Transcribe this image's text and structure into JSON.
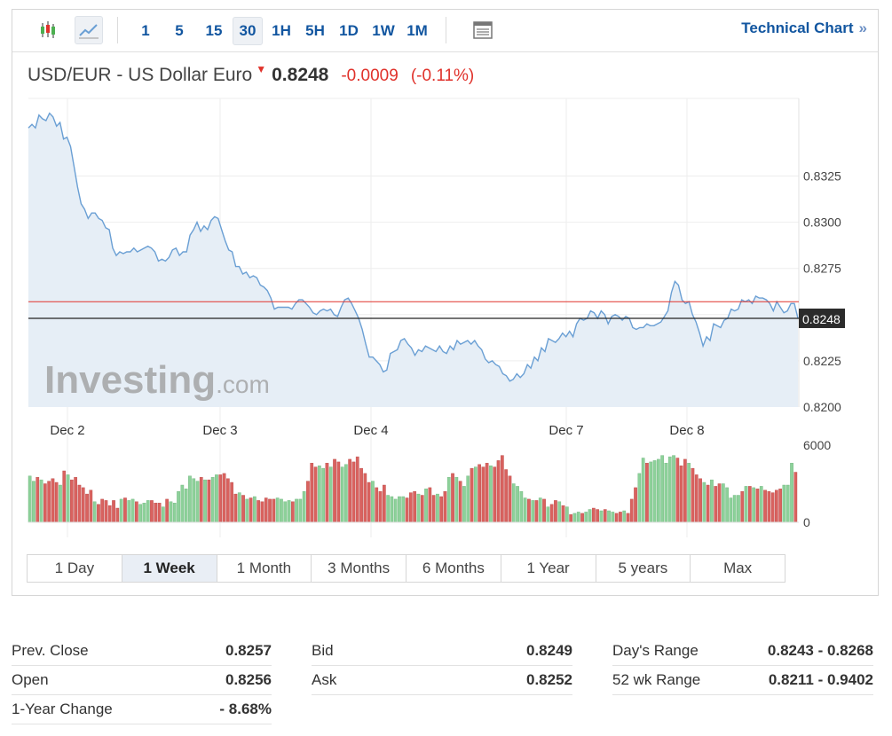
{
  "toolbar": {
    "intervals": [
      "1",
      "5",
      "15",
      "30",
      "1H",
      "5H",
      "1D",
      "1W",
      "1M"
    ],
    "active_interval": "30",
    "technical_chart_label": "Technical Chart",
    "technical_chart_chevron": "»",
    "icons": [
      "candlestick-icon",
      "line-chart-icon",
      "table-icon"
    ]
  },
  "quote": {
    "name": "USD/EUR - US Dollar Euro",
    "direction_arrow": "▼",
    "last": "0.8248",
    "change": "-0.0009",
    "change_pct": "(-0.11%)"
  },
  "chart_data": {
    "type": "line",
    "title": "",
    "ylim": [
      0.82,
      0.8367
    ],
    "yticks": [
      "0.8325",
      "0.8300",
      "0.8275",
      "0.8225",
      "0.8200"
    ],
    "xticks": [
      "Dec 2",
      "Dec 3",
      "Dec 4",
      "Dec 7",
      "Dec 8"
    ],
    "last_price_label": "0.8248",
    "last_price": 0.8248,
    "prev_close": 0.8257,
    "grid": true,
    "watermark": "Investing.com",
    "series": [
      {
        "values": [
          0.8351,
          0.8353,
          0.8351,
          0.8358,
          0.8356,
          0.8355,
          0.8359,
          0.8357,
          0.8352,
          0.8354,
          0.8345,
          0.8346,
          0.8341,
          0.833,
          0.8319,
          0.831,
          0.8307,
          0.8302,
          0.8305,
          0.8305,
          0.8302,
          0.8301,
          0.8297,
          0.8296,
          0.8286,
          0.8282,
          0.8284,
          0.8283,
          0.8284,
          0.8284,
          0.8286,
          0.8284,
          0.8285,
          0.8286,
          0.8287,
          0.8286,
          0.8284,
          0.8279,
          0.828,
          0.8279,
          0.8281,
          0.8285,
          0.8286,
          0.8282,
          0.8284,
          0.8284,
          0.8293,
          0.8296,
          0.83,
          0.8295,
          0.8298,
          0.8296,
          0.8301,
          0.8303,
          0.8302,
          0.8296,
          0.829,
          0.8285,
          0.8284,
          0.8276,
          0.8276,
          0.8272,
          0.8273,
          0.827,
          0.8271,
          0.827,
          0.8266,
          0.8265,
          0.8263,
          0.8259,
          0.8253,
          0.8254,
          0.8254,
          0.8254,
          0.8254,
          0.8253,
          0.8256,
          0.8258,
          0.8258,
          0.8256,
          0.8254,
          0.8251,
          0.825,
          0.8252,
          0.8253,
          0.8252,
          0.8253,
          0.825,
          0.8249,
          0.8254,
          0.8258,
          0.8259,
          0.8256,
          0.8252,
          0.8248,
          0.8242,
          0.8234,
          0.8227,
          0.8227,
          0.8225,
          0.8223,
          0.8219,
          0.822,
          0.8229,
          0.823,
          0.8231,
          0.8236,
          0.8237,
          0.8234,
          0.8232,
          0.8228,
          0.8231,
          0.823,
          0.8233,
          0.8232,
          0.8231,
          0.823,
          0.8233,
          0.823,
          0.8229,
          0.8233,
          0.8231,
          0.8236,
          0.8234,
          0.8235,
          0.8236,
          0.8234,
          0.8236,
          0.8233,
          0.8231,
          0.8226,
          0.8224,
          0.8225,
          0.8223,
          0.8222,
          0.8218,
          0.8217,
          0.8214,
          0.8215,
          0.8218,
          0.8216,
          0.8218,
          0.8223,
          0.8221,
          0.8227,
          0.8225,
          0.8232,
          0.823,
          0.8237,
          0.8236,
          0.8235,
          0.8237,
          0.824,
          0.8238,
          0.8241,
          0.8238,
          0.8245,
          0.8248,
          0.8247,
          0.8248,
          0.8252,
          0.8251,
          0.8248,
          0.8252,
          0.825,
          0.8245,
          0.8249,
          0.825,
          0.8249,
          0.8247,
          0.8249,
          0.8248,
          0.8243,
          0.8242,
          0.8243,
          0.8243,
          0.8245,
          0.8244,
          0.8244,
          0.8245,
          0.8246,
          0.8249,
          0.8252,
          0.8262,
          0.8268,
          0.8266,
          0.8258,
          0.8256,
          0.8257,
          0.825,
          0.8246,
          0.824,
          0.8233,
          0.8238,
          0.8236,
          0.8245,
          0.8244,
          0.8243,
          0.8247,
          0.8248,
          0.8253,
          0.8252,
          0.8253,
          0.8258,
          0.8257,
          0.8258,
          0.8256,
          0.826,
          0.8259,
          0.8259,
          0.8258,
          0.8256,
          0.8252,
          0.8257,
          0.8254,
          0.8251,
          0.8252,
          0.8256,
          0.8256,
          0.8248
        ]
      }
    ],
    "volume": {
      "ylim": [
        0,
        6000
      ],
      "yticks": [
        "6000",
        "0"
      ],
      "values": [
        3600,
        3200,
        3500,
        3300,
        3000,
        3200,
        3400,
        3100,
        2900,
        4000,
        3700,
        3300,
        3500,
        2900,
        2700,
        2200,
        2500,
        1600,
        1400,
        1800,
        1700,
        1300,
        1700,
        1100,
        1800,
        1900,
        1700,
        1800,
        1600,
        1400,
        1500,
        1700,
        1700,
        1500,
        1500,
        1200,
        1800,
        1600,
        1500,
        2400,
        2900,
        2600,
        3600,
        3400,
        3200,
        3500,
        3300,
        3300,
        3500,
        3700,
        3700,
        3800,
        3400,
        3100,
        2200,
        2300,
        2100,
        1800,
        1900,
        2000,
        1700,
        1600,
        1900,
        1800,
        1800,
        1900,
        1800,
        1600,
        1700,
        1600,
        1800,
        1800,
        2400,
        3200,
        4600,
        4300,
        4400,
        4200,
        4600,
        4300,
        4900,
        4700,
        4300,
        4500,
        4900,
        4700,
        5100,
        4200,
        3800,
        3100,
        3200,
        2700,
        2400,
        2900,
        2100,
        2000,
        1800,
        2000,
        2000,
        1900,
        2300,
        2400,
        2200,
        2100,
        2600,
        2700,
        2100,
        2200,
        2000,
        2400,
        3500,
        3800,
        3500,
        3200,
        2800,
        3600,
        4200,
        4300,
        4500,
        4300,
        4600,
        4400,
        4300,
        4800,
        5200,
        4100,
        3600,
        3000,
        2800,
        2400,
        1900,
        1800,
        1700,
        1700,
        1900,
        1800,
        1200,
        1400,
        1700,
        1600,
        1300,
        1200,
        600,
        700,
        800,
        700,
        800,
        1000,
        1100,
        1000,
        900,
        1000,
        900,
        800,
        700,
        800,
        900,
        700,
        1800,
        2700,
        3800,
        5000,
        4600,
        4700,
        4800,
        4900,
        5200,
        4600,
        5100,
        5200,
        5000,
        4400,
        4900,
        4600,
        4200,
        3700,
        3400,
        3100,
        2900,
        3300,
        2800,
        3000,
        3000,
        2700,
        1900,
        2100,
        2100,
        2400,
        2800,
        2800,
        2700,
        2600,
        2800,
        2500,
        2400,
        2300,
        2500,
        2600,
        2900,
        2900,
        4600,
        3900
      ]
    }
  },
  "ranges": {
    "items": [
      "1 Day",
      "1 Week",
      "1 Month",
      "3 Months",
      "6 Months",
      "1 Year",
      "5 years",
      "Max"
    ],
    "active": "1 Week"
  },
  "stats": {
    "col1": [
      {
        "label": "Prev. Close",
        "value": "0.8257"
      },
      {
        "label": "Open",
        "value": "0.8256"
      },
      {
        "label": "1-Year Change",
        "value": "- 8.68%"
      }
    ],
    "col2": [
      {
        "label": "Bid",
        "value": "0.8249"
      },
      {
        "label": "Ask",
        "value": "0.8252"
      }
    ],
    "col3": [
      {
        "label": "Day's Range",
        "value": "0.8243 - 0.8268"
      },
      {
        "label": "52 wk Range",
        "value": "0.8211 - 0.9402"
      }
    ]
  },
  "colors": {
    "line": "#6a9fd4",
    "area": "#e6eef6",
    "prev_close_line": "#e0322b",
    "last_price_line": "#222222",
    "volume_up": "#8dd19a",
    "volume_down": "#d9625f",
    "link": "#1256a0",
    "negative": "#e0322b"
  }
}
